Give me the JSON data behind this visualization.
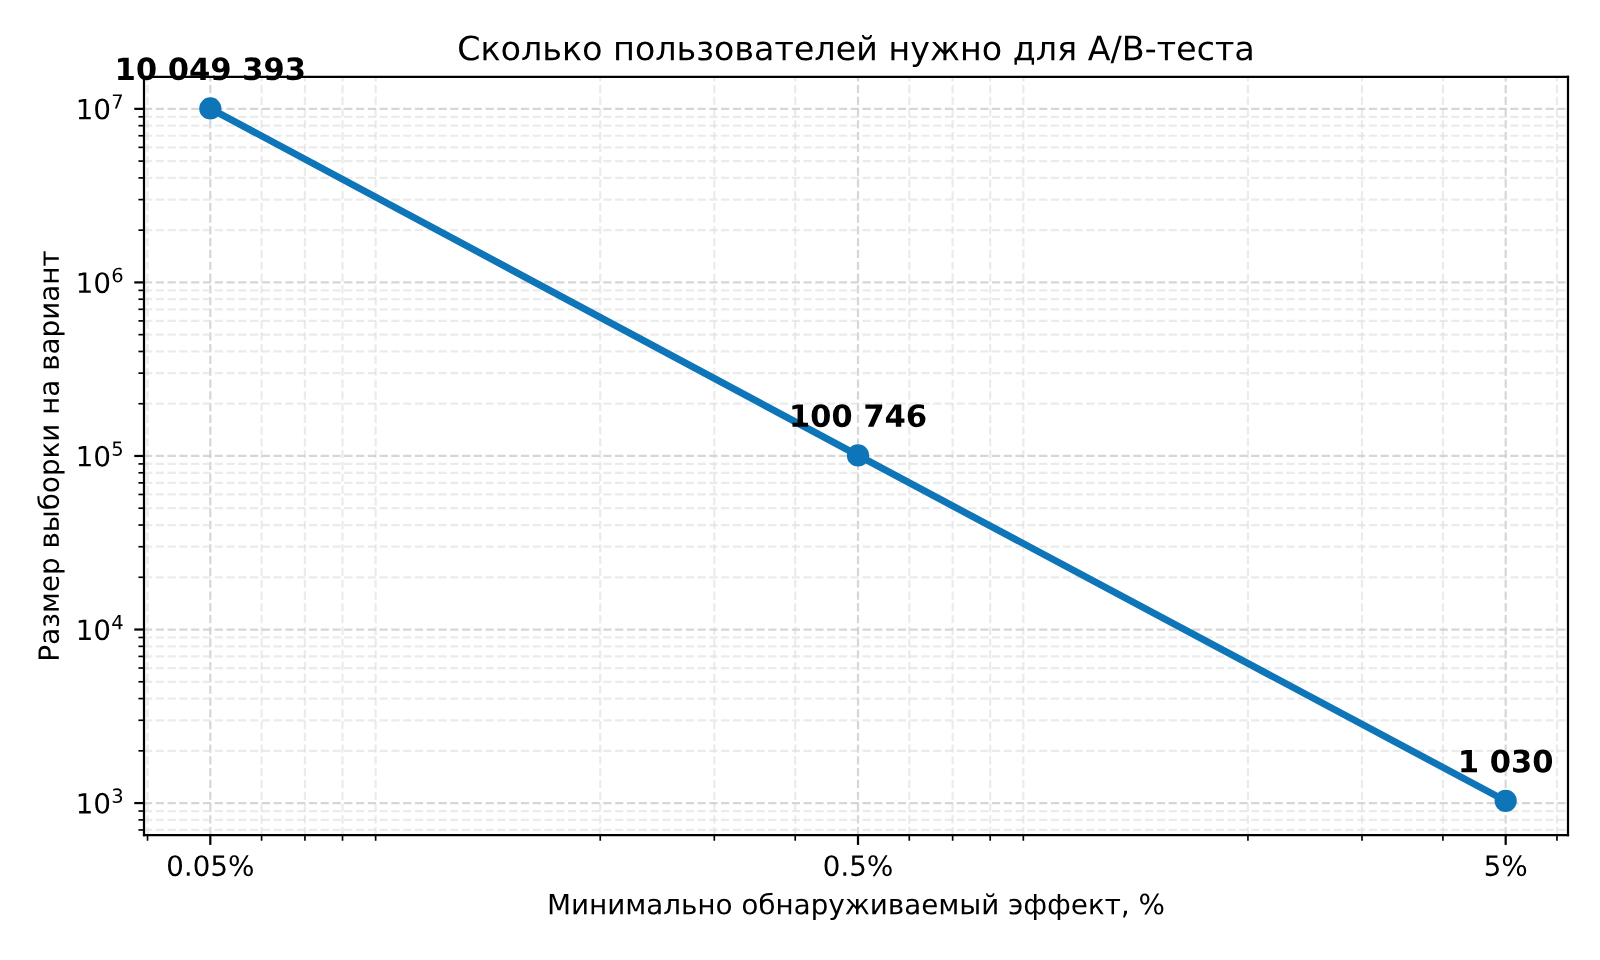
{
  "chart_data": {
    "type": "line",
    "title": "Сколько пользователей нужно для A/B-теста",
    "xlabel": "Минимально обнаруживаемый эффект, %",
    "ylabel": "Размер выборки на вариант",
    "x": [
      0.05,
      0.5,
      5
    ],
    "series": [
      {
        "color": "#0e76b8",
        "values": [
          10049393,
          100746,
          1030
        ],
        "value_labels": [
          "10 049 393",
          "100 746",
          "1 030"
        ]
      }
    ],
    "log": "xy",
    "xlim": [
      0.0395,
      6.24
    ],
    "ylim": [
      653,
      15300000
    ],
    "xticks": [
      {
        "value": 0.05,
        "label": "0.05%"
      },
      {
        "value": 0.5,
        "label": "0.5%"
      },
      {
        "value": 5,
        "label": "5%"
      }
    ],
    "yticks": [
      {
        "value": 1000,
        "label": "10$^{3}$"
      },
      {
        "value": 10000,
        "label": "10$^{4}$"
      },
      {
        "value": 100000,
        "label": "10$^{5}$"
      },
      {
        "value": 1000000,
        "label": "10$^{6}$"
      },
      {
        "value": 10000000,
        "label": "10$^{7}$"
      }
    ],
    "grid": true,
    "marker": "circle",
    "line_style": "solid"
  }
}
